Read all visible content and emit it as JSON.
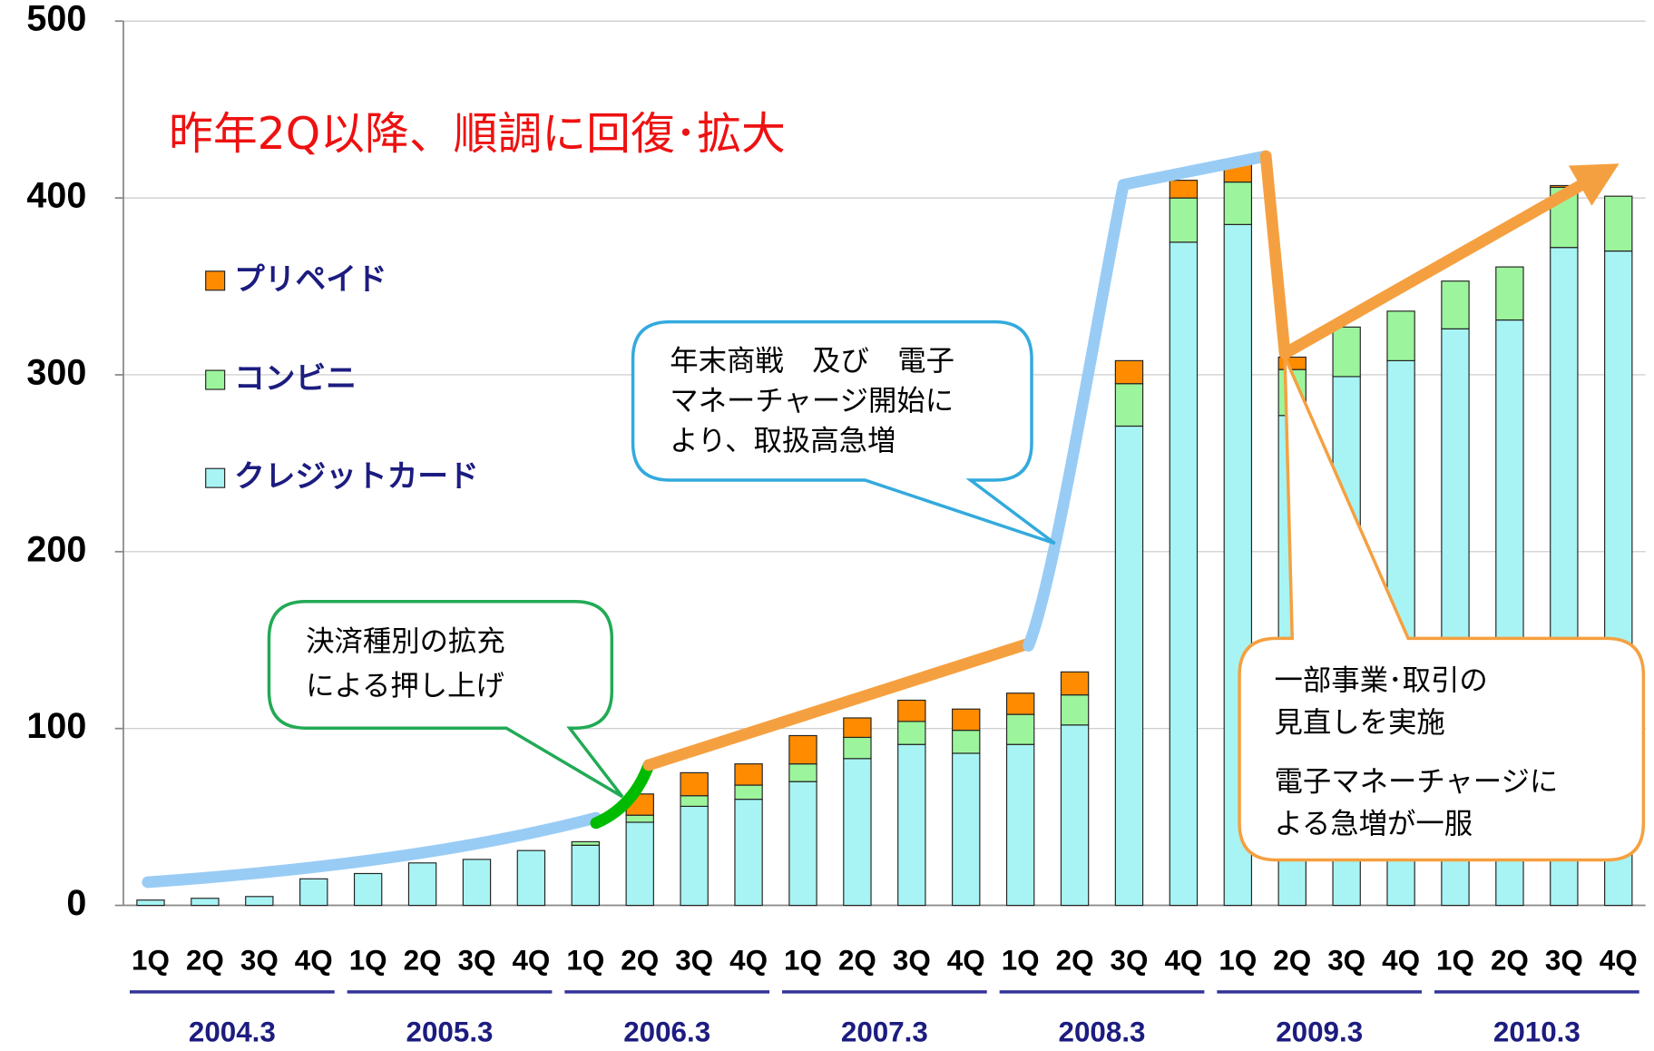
{
  "chart_data": {
    "type": "stacked_bar",
    "title": "昨年2Q以降、順調に回復･拡大",
    "categories": [
      "1Q",
      "2Q",
      "3Q",
      "4Q",
      "1Q",
      "2Q",
      "3Q",
      "4Q",
      "1Q",
      "2Q",
      "3Q",
      "4Q",
      "1Q",
      "2Q",
      "3Q",
      "4Q",
      "1Q",
      "2Q",
      "3Q",
      "4Q",
      "1Q",
      "2Q",
      "3Q",
      "4Q",
      "1Q",
      "2Q",
      "3Q",
      "4Q"
    ],
    "groups": [
      "2004.3",
      "2005.3",
      "2006.3",
      "2007.3",
      "2008.3",
      "2009.3",
      "2010.3"
    ],
    "series": [
      {
        "name": "クレジットカード",
        "color": "#a8f4f4",
        "values": [
          3,
          4,
          5,
          15,
          18,
          24,
          26,
          31,
          34,
          47,
          56,
          60,
          70,
          83,
          91,
          86,
          91,
          102,
          271,
          375,
          385,
          277,
          299,
          308,
          326,
          331,
          372,
          370
        ]
      },
      {
        "name": "コンビニ",
        "color": "#9cf59c",
        "values": [
          0,
          0,
          0,
          0,
          0,
          0,
          0,
          0,
          2,
          4,
          6,
          8,
          10,
          12,
          13,
          13,
          17,
          17,
          24,
          25,
          24,
          26,
          28,
          28,
          27,
          30,
          34,
          31
        ]
      },
      {
        "name": "プリペイド",
        "color": "#ff8c00",
        "values": [
          0,
          0,
          0,
          0,
          0,
          0,
          0,
          0,
          0,
          12,
          13,
          12,
          16,
          11,
          12,
          12,
          12,
          13,
          13,
          10,
          12,
          7,
          0,
          0,
          0,
          0,
          1,
          0
        ]
      }
    ],
    "ylim": [
      0,
      500
    ],
    "yticks": [
      0,
      100,
      200,
      300,
      400,
      500
    ],
    "grid": true,
    "annotations": [
      {
        "lines": [
          "年末商戦　及び　電子",
          "マネーチャージ開始に",
          "より、取扱高急増"
        ]
      },
      {
        "lines": [
          "決済種別の拡充",
          "による押し上げ"
        ]
      },
      {
        "lines": [
          "一部事業･取引の",
          "見直しを実施",
          "電子マネーチャージに",
          "よる急増が一服"
        ]
      }
    ]
  }
}
